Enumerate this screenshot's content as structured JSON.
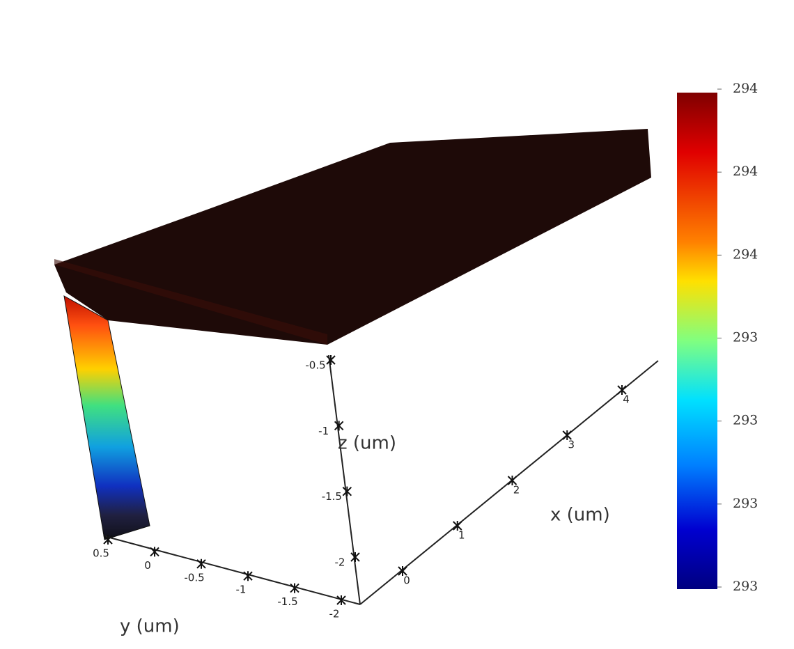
{
  "chart_data": {
    "type": "surface3d",
    "x_label": "x (um)",
    "y_label": "y (um)",
    "z_label": "z (um)",
    "xticks": [
      0,
      1,
      2,
      3,
      4
    ],
    "yticks": [
      0.5,
      0,
      -0.5,
      -1,
      -1.5,
      -2
    ],
    "zticks": [
      -0.5,
      -1,
      -1.5,
      -2
    ],
    "colorbar": {
      "clim": [
        293.15,
        293.75
      ],
      "ticks": [
        {
          "value": 293.75,
          "label": "294"
        },
        {
          "value": 293.65,
          "label": "294"
        },
        {
          "value": 293.55,
          "label": "294"
        },
        {
          "value": 293.45,
          "label": "293"
        },
        {
          "value": 293.35,
          "label": "293"
        },
        {
          "value": 293.25,
          "label": "293"
        },
        {
          "value": 293.15,
          "label": "293"
        }
      ]
    }
  }
}
